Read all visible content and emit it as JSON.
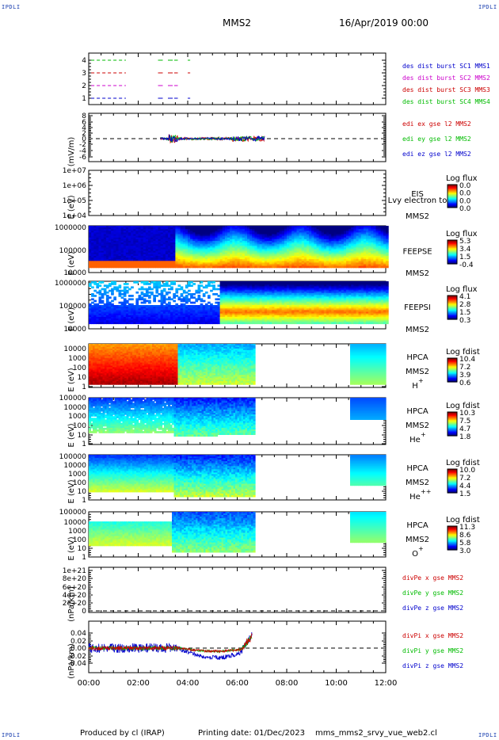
{
  "header": {
    "corner_tl": "IPDLI",
    "corner_tr": "IPDLI",
    "corner_bl": "IPDLI",
    "corner_br": "IPDLI",
    "title": "MMS2",
    "datetime": "16/Apr/2019 00:00"
  },
  "footer": {
    "produced": "Produced by cl (IRAP)",
    "printing": "Printing date: 01/Dec/2023",
    "script": "mms_mms2_srvy_vue_web2.cl"
  },
  "colors": {
    "mms1": "#0000cc",
    "mms2": "#cc00cc",
    "mms3": "#cc0000",
    "mms4": "#00bb00",
    "x": "#cc0000",
    "y": "#00bb00",
    "z": "#0000cc"
  },
  "chart_data": {
    "type": "multi-panel",
    "xaxis": {
      "range_hours": [
        0,
        12
      ],
      "tick_labels": [
        "00:00",
        "02:00",
        "04:00",
        "06:00",
        "08:00",
        "10:00",
        "12:00"
      ]
    },
    "panels": [
      {
        "id": "avail",
        "type": "timeline",
        "yticks": [
          "4",
          "3",
          "2",
          "1"
        ],
        "series": [
          {
            "name": "des dist burst SC1 MMS1",
            "color": "mms1",
            "level": 1
          },
          {
            "name": "des dist burst SC2 MMS2",
            "color": "mms2",
            "level": 2
          },
          {
            "name": "des dist burst SC3 MMS3",
            "color": "mms3",
            "level": 3
          },
          {
            "name": "des dist burst SC4 MMS4",
            "color": "mms4",
            "level": 4
          }
        ]
      },
      {
        "id": "edi",
        "type": "line",
        "ylabel": "(mV/m)",
        "yticks": [
          "8",
          "6",
          "4",
          "2",
          "0",
          "-2",
          "-4",
          "-6"
        ],
        "ylim": [
          -7,
          9
        ],
        "series": [
          {
            "name": "edi ex gse l2 MMS2",
            "color": "x"
          },
          {
            "name": "edi ey gse l2 MMS2",
            "color": "y"
          },
          {
            "name": "edi ez gse l2 MMS2",
            "color": "z"
          }
        ]
      },
      {
        "id": "eis",
        "type": "spectrogram",
        "ylabel": "E (eV)",
        "yticks": [
          "1e+07",
          "1e+06",
          "1e+05",
          "1e+04"
        ],
        "labels": [
          "EIS",
          "Lvy electron to",
          "MMS2"
        ],
        "colorbar": {
          "title": "Log flux",
          "ticks": [
            "0.0",
            "0.0",
            "0.0",
            "0.0"
          ]
        }
      },
      {
        "id": "feepse",
        "type": "spectrogram",
        "ylabel": "E (eV)",
        "yticks": [
          "1000000",
          "100000",
          "10000"
        ],
        "labels": [
          "FEEPSE",
          "MMS2"
        ],
        "colorbar": {
          "title": "Log flux",
          "ticks": [
            "5.3",
            "3.4",
            "1.5",
            "-0.4"
          ]
        }
      },
      {
        "id": "feepsi",
        "type": "spectrogram",
        "ylabel": "E (eV)",
        "yticks": [
          "1000000",
          "100000",
          "10000"
        ],
        "labels": [
          "FEEPSI",
          "MMS2"
        ],
        "colorbar": {
          "title": "Log flux",
          "ticks": [
            "4.1",
            "2.8",
            "1.5",
            "0.3"
          ]
        }
      },
      {
        "id": "hpca_h",
        "type": "spectrogram",
        "ylabel": "E (eV)",
        "yticks": [
          "10000",
          "1000",
          "100",
          "10",
          "1"
        ],
        "labels": [
          "HPCA",
          "MMS2"
        ],
        "species": "H",
        "species_sup": "+",
        "colorbar": {
          "title": "Log fdist",
          "ticks": [
            "10.4",
            "7.2",
            "3.9",
            "0.6"
          ]
        }
      },
      {
        "id": "hpca_he",
        "type": "spectrogram",
        "ylabel": "E (eV)",
        "yticks": [
          "100000",
          "10000",
          "1000",
          "100",
          "10",
          "1"
        ],
        "labels": [
          "HPCA",
          "MMS2"
        ],
        "species": "He",
        "species_sup": "+",
        "colorbar": {
          "title": "Log fdist",
          "ticks": [
            "10.3",
            "7.5",
            "4.7",
            "1.8"
          ]
        }
      },
      {
        "id": "hpca_hepp",
        "type": "spectrogram",
        "ylabel": "E (eV)",
        "yticks": [
          "100000",
          "10000",
          "1000",
          "100",
          "10",
          "1"
        ],
        "labels": [
          "HPCA",
          "MMS2"
        ],
        "species": "He",
        "species_sup": "++",
        "colorbar": {
          "title": "Log fdist",
          "ticks": [
            "10.0",
            "7.2",
            "4.4",
            "1.5"
          ]
        }
      },
      {
        "id": "hpca_o",
        "type": "spectrogram",
        "ylabel": "E (eV)",
        "yticks": [
          "100000",
          "10000",
          "1000",
          "100",
          "10",
          "1"
        ],
        "labels": [
          "HPCA",
          "MMS2"
        ],
        "species": "O",
        "species_sup": "+",
        "colorbar": {
          "title": "Log fdist",
          "ticks": [
            "11.3",
            "8.6",
            "5.8",
            "3.0"
          ]
        }
      },
      {
        "id": "divpe",
        "type": "line",
        "ylabel": "(nPa/km)",
        "yticks": [
          "1e+21",
          "8e+20",
          "6e+20",
          "4e+20",
          "2e+20",
          "0"
        ],
        "series": [
          {
            "name": "divPe x gse MMS2",
            "color": "x"
          },
          {
            "name": "divPe y gse MMS2",
            "color": "y"
          },
          {
            "name": "divPe z gse MMS2",
            "color": "z"
          }
        ]
      },
      {
        "id": "divpi",
        "type": "line",
        "ylabel": "(nPa/km)",
        "yticks": [
          "0.04",
          "0.02",
          "0.00",
          "-0.02",
          "-0.04"
        ],
        "ylim": [
          -0.055,
          0.055
        ],
        "series": [
          {
            "name": "divPi x gse MMS2",
            "color": "x"
          },
          {
            "name": "divPi y gse MMS2",
            "color": "y"
          },
          {
            "name": "divPi z gse MMS2",
            "color": "z"
          }
        ]
      }
    ]
  }
}
